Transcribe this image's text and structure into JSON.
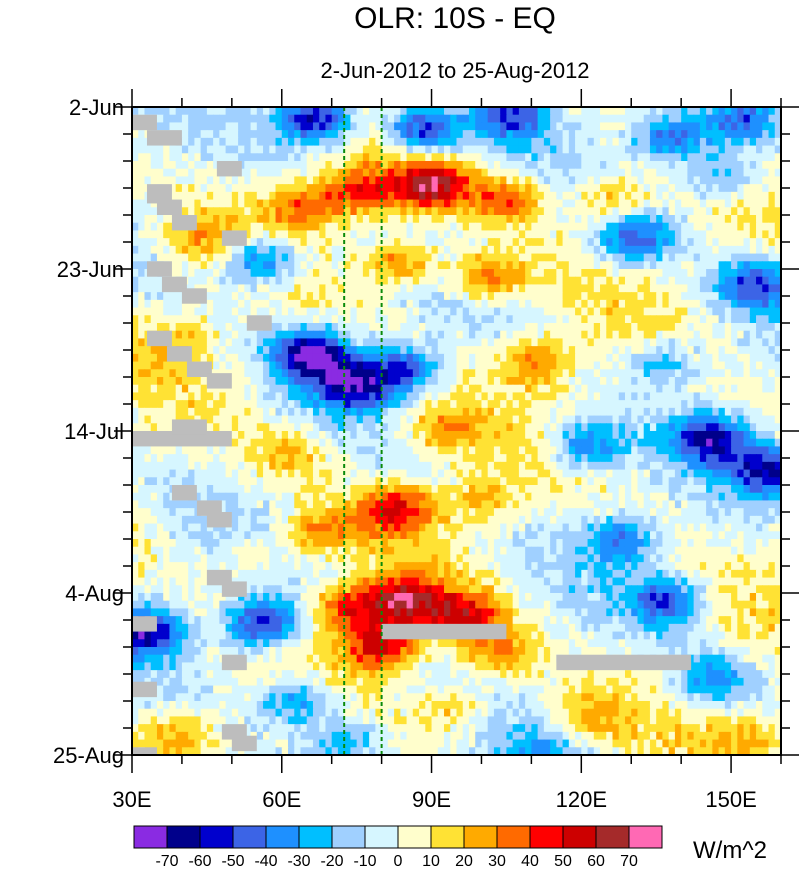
{
  "chart_data": {
    "type": "heatmap",
    "title": "OLR: 10S - EQ",
    "subtitle": "2-Jun-2012 to 25-Aug-2012",
    "x_axis": {
      "range": [
        30,
        160
      ],
      "ticks": [
        30,
        60,
        90,
        120,
        150
      ],
      "tick_labels": [
        "30E",
        "60E",
        "90E",
        "120E",
        "150E"
      ]
    },
    "y_axis": {
      "range_days": [
        0,
        84
      ],
      "ticks_days": [
        0,
        21,
        42,
        63,
        84
      ],
      "tick_labels": [
        "2-Jun",
        "23-Jun",
        "14-Jul",
        "4-Aug",
        "25-Aug"
      ]
    },
    "reference_lines_lon": [
      72.5,
      80
    ],
    "colorbar": {
      "unit": "W/m^2",
      "levels": [
        -70,
        -60,
        -50,
        -40,
        -30,
        -20,
        -10,
        0,
        10,
        20,
        30,
        40,
        50,
        60,
        70
      ],
      "level_labels": [
        "-70",
        "-60",
        "-50",
        "-40",
        "-30",
        "-20",
        "-10",
        "0",
        "10",
        "20",
        "30",
        "40",
        "50",
        "60",
        "70"
      ],
      "colors": [
        "#8a2be2",
        "#00008b",
        "#0000cd",
        "#3c64e6",
        "#1e90ff",
        "#00bfff",
        "#a0d0ff",
        "#d6f6ff",
        "#fffecc",
        "#ffe234",
        "#ffaa00",
        "#ff6a00",
        "#ff0000",
        "#cd0000",
        "#a52a2a",
        "#ff69b4"
      ]
    },
    "features": [
      {
        "lon": 67,
        "day": 1.5,
        "value": -68
      },
      {
        "lon": 88,
        "day": 3,
        "value": -55
      },
      {
        "lon": 106,
        "day": 1,
        "value": -42
      },
      {
        "lon": 138,
        "day": 4,
        "value": -48
      },
      {
        "lon": 152,
        "day": 2,
        "value": -44
      },
      {
        "lon": 90,
        "day": 10,
        "value": 62
      },
      {
        "lon": 76,
        "day": 11,
        "value": 45
      },
      {
        "lon": 105,
        "day": 12,
        "value": 38
      },
      {
        "lon": 64,
        "day": 13,
        "value": 35
      },
      {
        "lon": 126,
        "day": 12,
        "value": 28
      },
      {
        "lon": 148,
        "day": 9,
        "value": -35
      },
      {
        "lon": 56,
        "day": 20,
        "value": -48
      },
      {
        "lon": 43,
        "day": 17,
        "value": 22
      },
      {
        "lon": 101,
        "day": 22,
        "value": 40
      },
      {
        "lon": 84,
        "day": 20,
        "value": 38
      },
      {
        "lon": 131,
        "day": 17,
        "value": -45
      },
      {
        "lon": 155,
        "day": 23,
        "value": -45
      },
      {
        "lon": 66,
        "day": 32,
        "value": -72
      },
      {
        "lon": 74,
        "day": 36,
        "value": -55
      },
      {
        "lon": 84,
        "day": 34,
        "value": -50
      },
      {
        "lon": 111,
        "day": 33,
        "value": 32
      },
      {
        "lon": 137,
        "day": 33,
        "value": -28
      },
      {
        "lon": 40,
        "day": 30,
        "value": 18
      },
      {
        "lon": 92,
        "day": 42,
        "value": 28
      },
      {
        "lon": 121,
        "day": 44,
        "value": -40
      },
      {
        "lon": 146,
        "day": 43,
        "value": -55
      },
      {
        "lon": 158,
        "day": 47,
        "value": -60
      },
      {
        "lon": 62,
        "day": 45,
        "value": 20
      },
      {
        "lon": 83,
        "day": 52,
        "value": 45
      },
      {
        "lon": 68,
        "day": 55,
        "value": 28
      },
      {
        "lon": 100,
        "day": 51,
        "value": 22
      },
      {
        "lon": 128,
        "day": 56,
        "value": -38
      },
      {
        "lon": 54,
        "day": 58,
        "value": 16
      },
      {
        "lon": 84,
        "day": 64,
        "value": 58
      },
      {
        "lon": 96,
        "day": 66,
        "value": 48
      },
      {
        "lon": 73,
        "day": 65,
        "value": 40
      },
      {
        "lon": 56,
        "day": 67,
        "value": -60
      },
      {
        "lon": 33,
        "day": 68,
        "value": -58
      },
      {
        "lon": 137,
        "day": 64,
        "value": -42
      },
      {
        "lon": 80,
        "day": 70,
        "value": 55
      },
      {
        "lon": 103,
        "day": 71,
        "value": 30
      },
      {
        "lon": 63,
        "day": 77,
        "value": -40
      },
      {
        "lon": 94,
        "day": 78,
        "value": 26
      },
      {
        "lon": 121,
        "day": 79,
        "value": 22
      },
      {
        "lon": 146,
        "day": 74,
        "value": -32
      },
      {
        "lon": 40,
        "day": 81,
        "value": 25
      },
      {
        "lon": 73,
        "day": 82,
        "value": -30
      },
      {
        "lon": 112,
        "day": 84,
        "value": -25
      },
      {
        "lon": 154,
        "day": 82,
        "value": 24
      }
    ],
    "missing_blocks": [
      {
        "lon0": 30,
        "lon1": 35,
        "d0": 1,
        "d1": 3
      },
      {
        "lon0": 33,
        "lon1": 40,
        "d0": 3,
        "d1": 5
      },
      {
        "lon0": 47,
        "lon1": 52,
        "d0": 7,
        "d1": 9
      },
      {
        "lon0": 33,
        "lon1": 38,
        "d0": 10,
        "d1": 12.5
      },
      {
        "lon0": 35,
        "lon1": 40,
        "d0": 12,
        "d1": 14
      },
      {
        "lon0": 38,
        "lon1": 43,
        "d0": 14,
        "d1": 16
      },
      {
        "lon0": 48,
        "lon1": 53,
        "d0": 16,
        "d1": 18
      },
      {
        "lon0": 33,
        "lon1": 38,
        "d0": 20,
        "d1": 22
      },
      {
        "lon0": 36,
        "lon1": 41,
        "d0": 22,
        "d1": 24
      },
      {
        "lon0": 40,
        "lon1": 45,
        "d0": 23.5,
        "d1": 25.5
      },
      {
        "lon0": 53,
        "lon1": 58,
        "d0": 27,
        "d1": 29
      },
      {
        "lon0": 33,
        "lon1": 38,
        "d0": 29,
        "d1": 31
      },
      {
        "lon0": 37,
        "lon1": 42,
        "d0": 31,
        "d1": 33
      },
      {
        "lon0": 41,
        "lon1": 46,
        "d0": 33,
        "d1": 35
      },
      {
        "lon0": 45,
        "lon1": 50,
        "d0": 34.5,
        "d1": 36.5
      },
      {
        "lon0": 30,
        "lon1": 50,
        "d0": 42,
        "d1": 44
      },
      {
        "lon0": 38,
        "lon1": 45,
        "d0": 40.5,
        "d1": 42.5
      },
      {
        "lon0": 38,
        "lon1": 43,
        "d0": 49,
        "d1": 51
      },
      {
        "lon0": 43,
        "lon1": 48,
        "d0": 51,
        "d1": 53
      },
      {
        "lon0": 45,
        "lon1": 50,
        "d0": 52.5,
        "d1": 54.5
      },
      {
        "lon0": 45,
        "lon1": 50,
        "d0": 60,
        "d1": 62
      },
      {
        "lon0": 48,
        "lon1": 53,
        "d0": 61.5,
        "d1": 63.5
      },
      {
        "lon0": 30,
        "lon1": 35,
        "d0": 66,
        "d1": 68
      },
      {
        "lon0": 80,
        "lon1": 105,
        "d0": 67,
        "d1": 69
      },
      {
        "lon0": 115,
        "lon1": 142,
        "d0": 71,
        "d1": 73
      },
      {
        "lon0": 48,
        "lon1": 53,
        "d0": 71,
        "d1": 73
      },
      {
        "lon0": 30,
        "lon1": 35,
        "d0": 74.5,
        "d1": 76.5
      },
      {
        "lon0": 48,
        "lon1": 53,
        "d0": 80,
        "d1": 82
      },
      {
        "lon0": 50,
        "lon1": 55,
        "d0": 81.5,
        "d1": 83.5
      },
      {
        "lon0": 30,
        "lon1": 35,
        "d0": 83,
        "d1": 84
      }
    ]
  }
}
